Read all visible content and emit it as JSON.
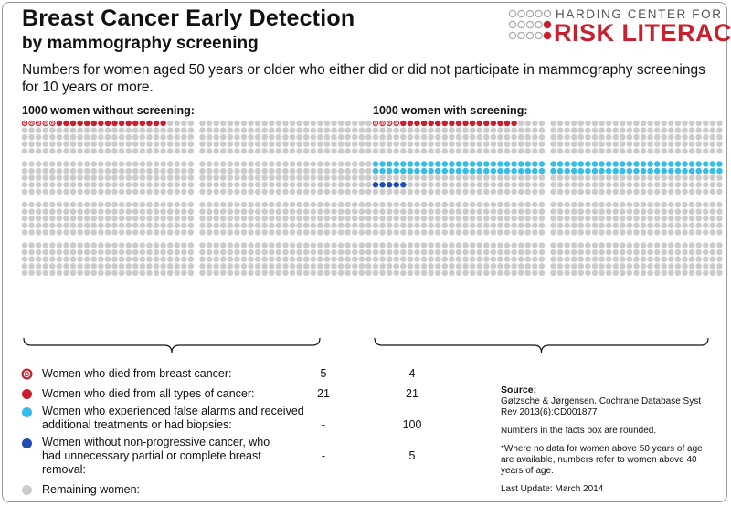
{
  "header": {
    "title_line1": "Breast Cancer Early Detection",
    "title_line2": "by mammography screening",
    "subtitle": "Numbers for women aged 50 years or older who either did or did not participate in mammography screenings for 10 years or more."
  },
  "logo": {
    "top_text": "HARDING CENTER FOR",
    "bottom_text": "RISK LITERACY",
    "dot_colors": [
      "#aaaaaa",
      "#c8202e"
    ]
  },
  "groups": [
    {
      "title": "1000 women without screening:",
      "counts": {
        "breast_cancer_deaths": 5,
        "all_cancer_deaths": 21,
        "false_alarms": 0,
        "overtreatment": 0
      }
    },
    {
      "title": "1000 women with screening:",
      "counts": {
        "breast_cancer_deaths": 4,
        "all_cancer_deaths": 21,
        "false_alarms": 100,
        "overtreatment": 5
      }
    }
  ],
  "legend": [
    {
      "key": "breast_cancer_deaths",
      "label": "Women who died from breast cancer:",
      "without": "5",
      "with": "4",
      "color": "#c8202e",
      "icon": "breast-cancer-b-icon"
    },
    {
      "key": "all_cancer_deaths",
      "label": "Women who died from all types of cancer:",
      "without": "21",
      "with": "21",
      "color": "#c8202e",
      "icon": "red-dot-icon"
    },
    {
      "key": "false_alarms",
      "label": "Women who experienced false alarms and received additional treatments or had biopsies:",
      "without": "-",
      "with": "100",
      "color": "#33bde8",
      "icon": "cyan-dot-icon"
    },
    {
      "key": "overtreatment",
      "label": "Women without non-progressive cancer, who had unnecessary partial or complete breast removal:",
      "without": "-",
      "with": "5",
      "color": "#1f4db5",
      "icon": "blue-dot-icon"
    },
    {
      "key": "remaining",
      "label": "Remaining women:",
      "without": "",
      "with": "",
      "color": "#cccccc",
      "icon": "gray-dot-icon"
    }
  ],
  "source": {
    "heading": "Source:",
    "citation": "Gøtzsche & Jørgensen. Cochrane Database Syst Rev 2013(6):CD001877",
    "note_rounded": "Numbers in the facts box are rounded.",
    "note_age": "*Where no data for women above 50 years of age are available, numbers refer to women above 40 years of age.",
    "last_update": "Last Update: March 2014"
  },
  "colors": {
    "red": "#c8202e",
    "cyan": "#33bde8",
    "blue": "#1f4db5",
    "gray": "#cccccc",
    "badge_letter": "B"
  }
}
